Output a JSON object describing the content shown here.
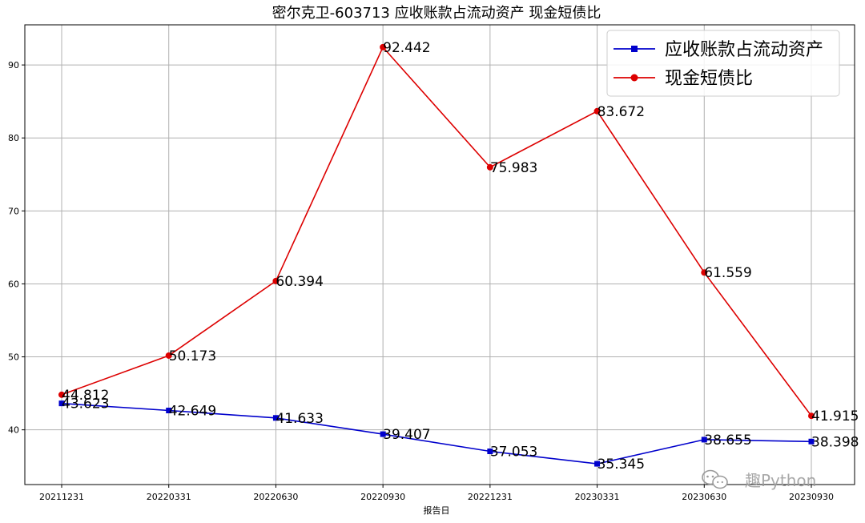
{
  "chart_data": {
    "type": "line",
    "title": "密尔克卫-603713 应收账款占流动资产 现金短债比",
    "xlabel": "报告日",
    "ylabel": "",
    "categories": [
      "20211231",
      "20220331",
      "20220630",
      "20220930",
      "20221231",
      "20230331",
      "20230630",
      "20230930"
    ],
    "series": [
      {
        "name": "应收账款占流动资产",
        "color": "#0000cc",
        "marker": "square",
        "values": [
          43.623,
          42.649,
          41.633,
          39.407,
          37.053,
          35.345,
          38.655,
          38.398
        ]
      },
      {
        "name": "现金短债比",
        "color": "#dd0000",
        "marker": "circle",
        "values": [
          44.812,
          50.173,
          60.394,
          92.442,
          75.983,
          83.672,
          61.559,
          41.915
        ]
      }
    ],
    "ylim": [
      32.5,
      95.5
    ],
    "yticks": [
      40,
      50,
      60,
      70,
      80,
      90
    ],
    "grid": true,
    "legend_position": "top-right"
  },
  "watermark": {
    "icon": "wechat-icon",
    "text": "趣Python"
  }
}
